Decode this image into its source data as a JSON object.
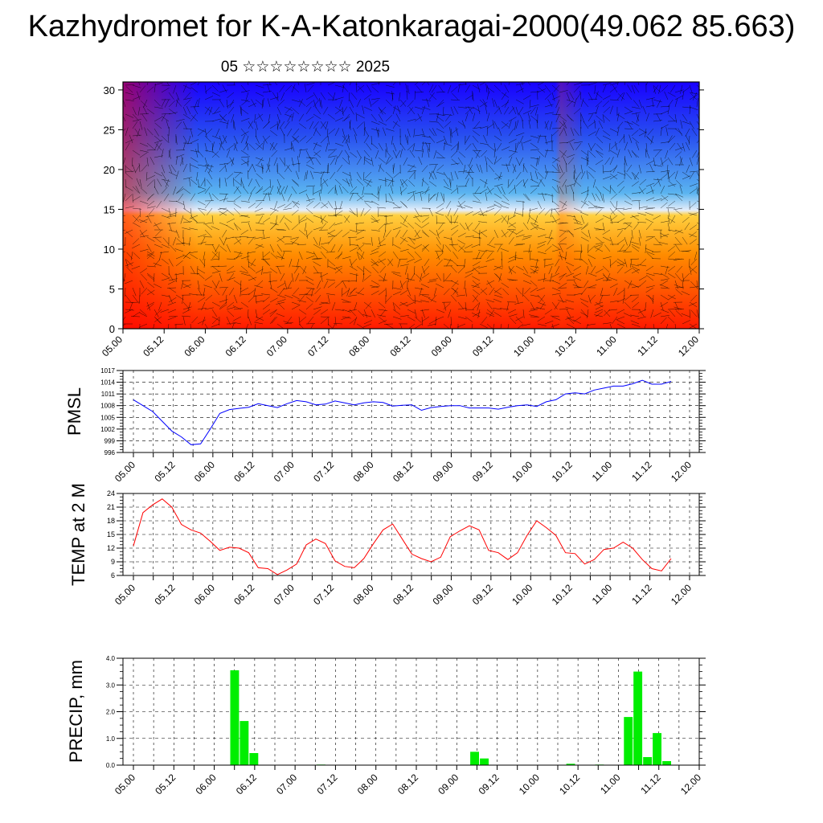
{
  "title": "Kazhydromet for K-A-Katonkaragai-2000(49.062 85.663)",
  "subtitle": "05 ☆☆☆☆☆☆☆☆ 2025",
  "chart_data": [
    {
      "type": "heatmap",
      "ylim": [
        0,
        31
      ],
      "yticks": [
        0,
        5,
        10,
        15,
        20,
        25,
        30
      ],
      "xticks": [
        "05.00",
        "05.12",
        "06.00",
        "06.12",
        "07.00",
        "07.12",
        "08.00",
        "08.12",
        "09.00",
        "09.12",
        "10.00",
        "10.12",
        "11.00",
        "11.12",
        "12.00"
      ],
      "colors": {
        "top": "#1800ff",
        "upper": "#2850f0",
        "mid": "#5ab4f0",
        "pale": "#e6eefa",
        "lower": "#ffd040",
        "orange": "#ff8c00",
        "bottom": "#ff1a00"
      },
      "overlay": "wind-barbs"
    },
    {
      "type": "line",
      "ylabel": "PMSL",
      "ylim": [
        996,
        1017
      ],
      "yticks": [
        996,
        999,
        1002,
        1005,
        1008,
        1011,
        1014,
        1017
      ],
      "xticks": [
        "05.00",
        "05.12",
        "06.00",
        "06.12",
        "07.00",
        "07.12",
        "08.00",
        "08.12",
        "09.00",
        "09.12",
        "10.00",
        "10.12",
        "11.00",
        "11.12",
        "12.00"
      ],
      "color": "#0000ff",
      "values": [
        1009.5,
        1008,
        1006.5,
        1004,
        1001.5,
        1000,
        998,
        998.2,
        1002,
        1006,
        1007,
        1007.3,
        1007.6,
        1008.5,
        1008,
        1007.5,
        1008.5,
        1009.3,
        1009,
        1008.2,
        1008.4,
        1009.2,
        1008.7,
        1008.2,
        1008.7,
        1009,
        1008.8,
        1007.9,
        1008.1,
        1008.2,
        1006.8,
        1007.5,
        1007.8,
        1008,
        1008,
        1007.4,
        1007.4,
        1007.4,
        1007.1,
        1007.6,
        1008,
        1008.2,
        1007.8,
        1009,
        1009.5,
        1011,
        1011.3,
        1011,
        1012,
        1012.5,
        1013,
        1013,
        1013.6,
        1014.5,
        1013.5,
        1013.5,
        1014.2
      ]
    },
    {
      "type": "line",
      "ylabel": "TEMP at 2 M",
      "ylim": [
        6,
        24
      ],
      "yticks": [
        6,
        9,
        12,
        15,
        18,
        21,
        24
      ],
      "xticks": [
        "05.00",
        "05.12",
        "06.00",
        "06.12",
        "07.00",
        "07.12",
        "08.00",
        "08.12",
        "09.00",
        "09.12",
        "10.00",
        "10.12",
        "11.00",
        "11.12",
        "12.00"
      ],
      "color": "#ff0000",
      "values": [
        12.5,
        19.8,
        21.5,
        22.8,
        21,
        17.2,
        16,
        15.3,
        13.5,
        11.5,
        12.2,
        12,
        11,
        7.7,
        7.5,
        6.2,
        7.2,
        8.5,
        12.7,
        14,
        13,
        9.2,
        8,
        7.7,
        9.7,
        13,
        16,
        17.3,
        14,
        10.7,
        9.7,
        9,
        10,
        14.5,
        15.8,
        16.9,
        16,
        11.5,
        11,
        9.5,
        11,
        14.8,
        18,
        16.5,
        14.8,
        11,
        10.8,
        8.5,
        9.5,
        11.7,
        12,
        13.3,
        12,
        9.5,
        7.5,
        7,
        9.7
      ]
    },
    {
      "type": "bar",
      "ylabel": "PRECIP, mm",
      "ylim": [
        0,
        4
      ],
      "yticks": [
        "0.0",
        "1.0",
        "2.0",
        "3.0",
        "4.0"
      ],
      "xticks": [
        "05.00",
        "05.12",
        "06.00",
        "06.12",
        "07.00",
        "07.12",
        "08.00",
        "08.12",
        "09.00",
        "09.12",
        "10.00",
        "10.12",
        "11.00",
        "11.12",
        "12.00"
      ],
      "color": "#00ee00",
      "values": [
        0,
        0,
        0,
        0,
        0,
        0,
        0,
        0,
        0,
        0,
        3.55,
        1.65,
        0.45,
        0,
        0,
        0,
        0,
        0,
        0,
        0.02,
        0,
        0,
        0,
        0,
        0,
        0,
        0,
        0,
        0,
        0,
        0,
        0,
        0,
        0,
        0,
        0.5,
        0.25,
        0,
        0,
        0,
        0,
        0,
        0,
        0,
        0,
        0.05,
        0,
        0,
        0.02,
        0,
        0,
        1.8,
        3.5,
        0.3,
        1.2,
        0.15,
        0
      ]
    }
  ]
}
